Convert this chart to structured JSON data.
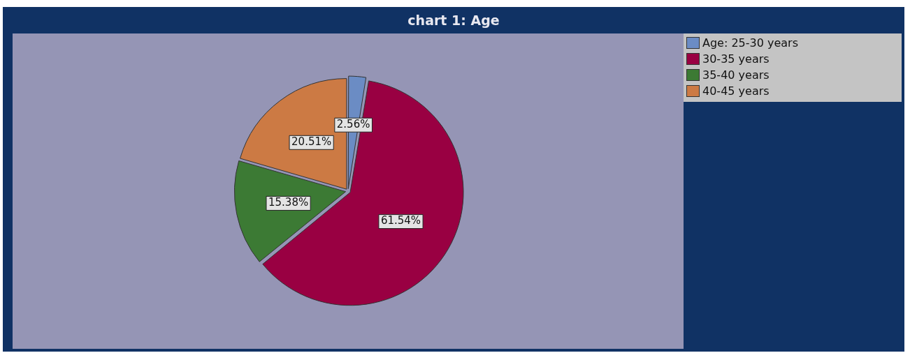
{
  "chart_data": {
    "type": "pie",
    "title": "chart 1: Age",
    "categories": [
      "Age: 25-30 years",
      "30-35 years",
      "35-40 years",
      "40-45 years"
    ],
    "values": [
      2.56,
      61.54,
      15.38,
      20.51
    ],
    "colors": [
      "#6b8cc4",
      "#990042",
      "#3c7a34",
      "#cc7a44"
    ],
    "value_labels": [
      "2.56%",
      "61.54%",
      "15.38%",
      "20.51%"
    ],
    "legend": "top right"
  }
}
